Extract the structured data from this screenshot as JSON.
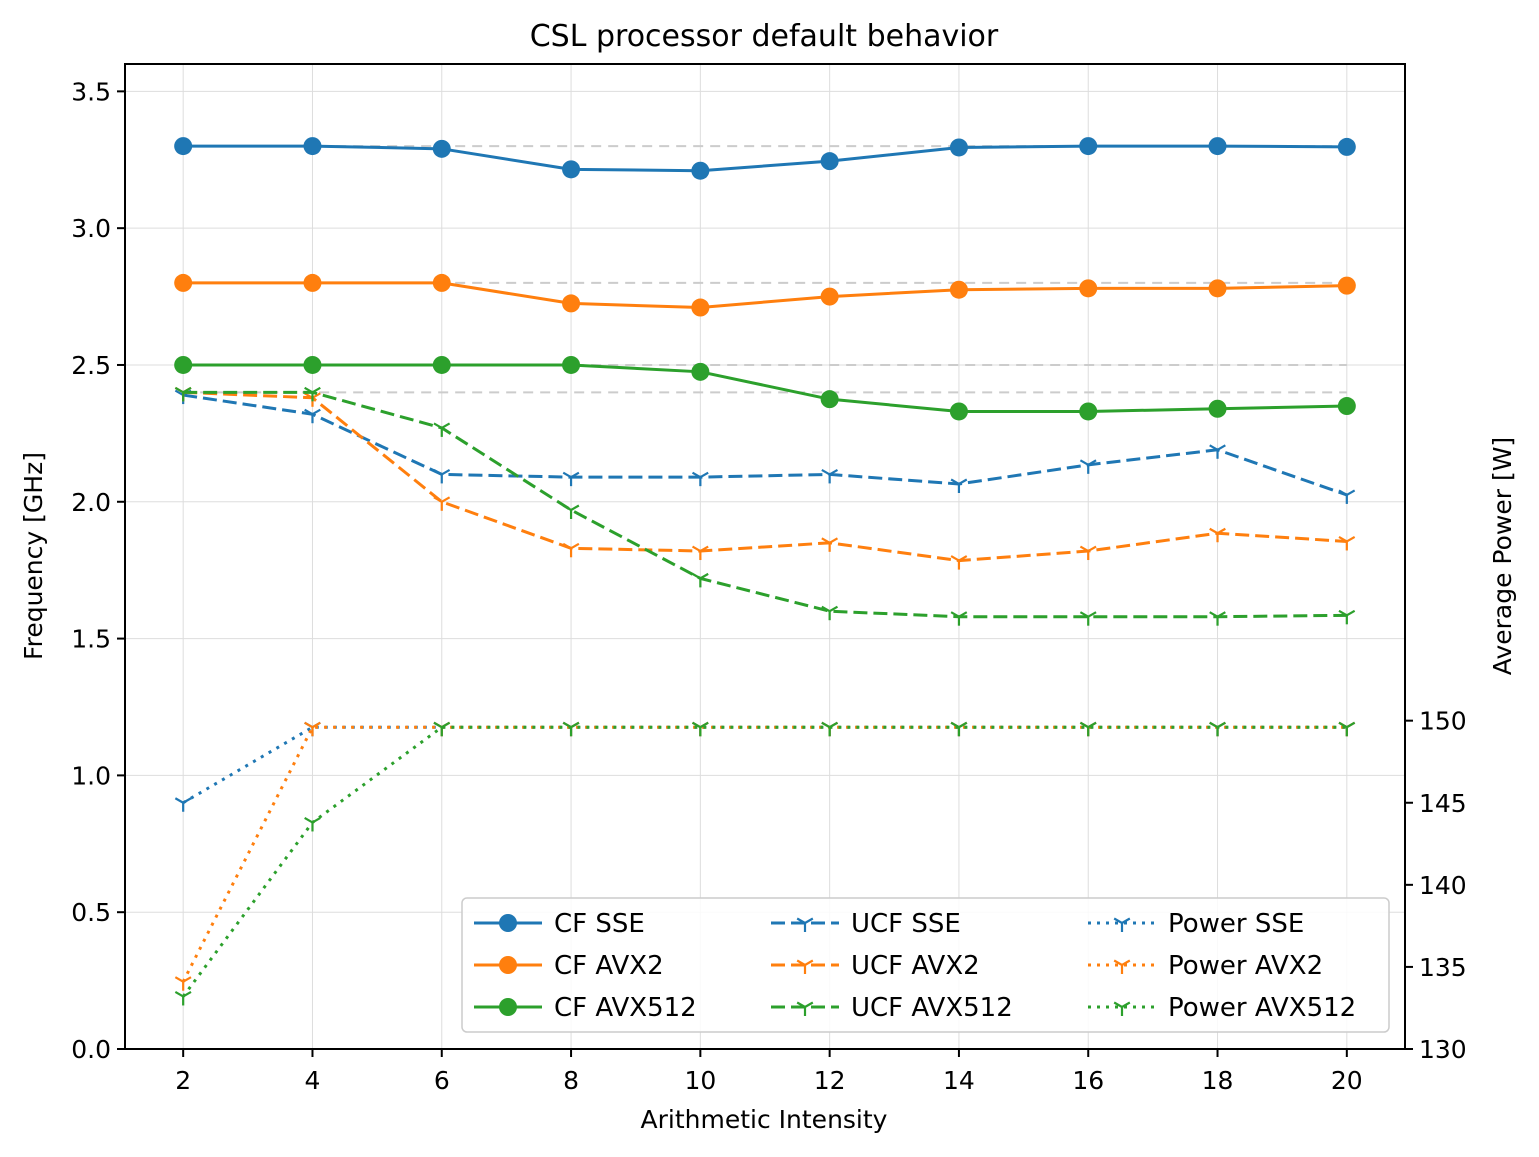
{
  "chart_data": {
    "type": "line",
    "title": "CSL processor default behavior",
    "xlabel": "Arithmetic Intensity",
    "ylabel": "Frequency [GHz]",
    "y2label": "Average Power [W]",
    "x": [
      2,
      4,
      6,
      8,
      10,
      12,
      14,
      16,
      18,
      20
    ],
    "xlim": [
      1.1,
      20.9
    ],
    "ylim": [
      0,
      3.6
    ],
    "y2lim": [
      130,
      150
    ],
    "y2_axis_visible_range": [
      130,
      150
    ],
    "xticks": [
      2,
      4,
      6,
      8,
      10,
      12,
      14,
      16,
      18,
      20
    ],
    "yticks": [
      0.0,
      0.5,
      1.0,
      1.5,
      2.0,
      2.5,
      3.0,
      3.5
    ],
    "ytick_labels": [
      "0.0",
      "0.5",
      "1.0",
      "1.5",
      "2.0",
      "2.5",
      "3.0",
      "3.5"
    ],
    "y2ticks": [
      130,
      135,
      140,
      145,
      150
    ],
    "grid": true,
    "legend_position": "lower-right",
    "reference_lines": [
      3.3,
      2.8,
      2.5,
      2.4
    ],
    "series": [
      {
        "name": "CF SSE",
        "axis": "left",
        "style": "solid",
        "marker": "circle",
        "color": "#1f77b4",
        "values": [
          3.3,
          3.3,
          3.29,
          3.215,
          3.21,
          3.245,
          3.295,
          3.3,
          3.3,
          3.297
        ]
      },
      {
        "name": "CF AVX2",
        "axis": "left",
        "style": "solid",
        "marker": "circle",
        "color": "#ff7f0e",
        "values": [
          2.8,
          2.8,
          2.8,
          2.725,
          2.71,
          2.75,
          2.775,
          2.78,
          2.78,
          2.79
        ]
      },
      {
        "name": "CF AVX512",
        "axis": "left",
        "style": "solid",
        "marker": "circle",
        "color": "#2ca02c",
        "values": [
          2.5,
          2.5,
          2.5,
          2.5,
          2.475,
          2.375,
          2.33,
          2.33,
          2.34,
          2.35
        ]
      },
      {
        "name": "UCF SSE",
        "axis": "left",
        "style": "dashed",
        "marker": "tri",
        "color": "#1f77b4",
        "values": [
          2.39,
          2.32,
          2.1,
          2.09,
          2.09,
          2.1,
          2.065,
          2.135,
          2.19,
          2.025
        ]
      },
      {
        "name": "UCF AVX2",
        "axis": "left",
        "style": "dashed",
        "marker": "tri",
        "color": "#ff7f0e",
        "values": [
          2.4,
          2.38,
          2.0,
          1.83,
          1.82,
          1.85,
          1.785,
          1.82,
          1.885,
          1.855
        ]
      },
      {
        "name": "UCF AVX512",
        "axis": "left",
        "style": "dashed",
        "marker": "tri",
        "color": "#2ca02c",
        "values": [
          2.4,
          2.4,
          2.27,
          1.97,
          1.72,
          1.6,
          1.58,
          1.58,
          1.58,
          1.585
        ]
      },
      {
        "name": "Power SSE",
        "axis": "right",
        "style": "dotted",
        "marker": "tri",
        "color": "#1f77b4",
        "values": [
          145.0,
          149.6,
          149.6,
          149.6,
          149.6,
          149.6,
          149.6,
          149.6,
          149.6,
          149.6
        ]
      },
      {
        "name": "Power AVX2",
        "axis": "right",
        "style": "dotted",
        "marker": "tri",
        "color": "#ff7f0e",
        "values": [
          134.1,
          149.6,
          149.6,
          149.6,
          149.6,
          149.6,
          149.6,
          149.6,
          149.6,
          149.6
        ]
      },
      {
        "name": "Power AVX512",
        "axis": "right",
        "style": "dotted",
        "marker": "tri",
        "color": "#2ca02c",
        "values": [
          133.2,
          143.8,
          149.6,
          149.6,
          149.6,
          149.6,
          149.6,
          149.6,
          149.6,
          149.6
        ]
      }
    ],
    "legend_columns": [
      [
        "CF SSE",
        "CF AVX2",
        "CF AVX512"
      ],
      [
        "UCF SSE",
        "UCF AVX2",
        "UCF AVX512"
      ],
      [
        "Power SSE",
        "Power AVX2",
        "Power AVX512"
      ]
    ]
  }
}
